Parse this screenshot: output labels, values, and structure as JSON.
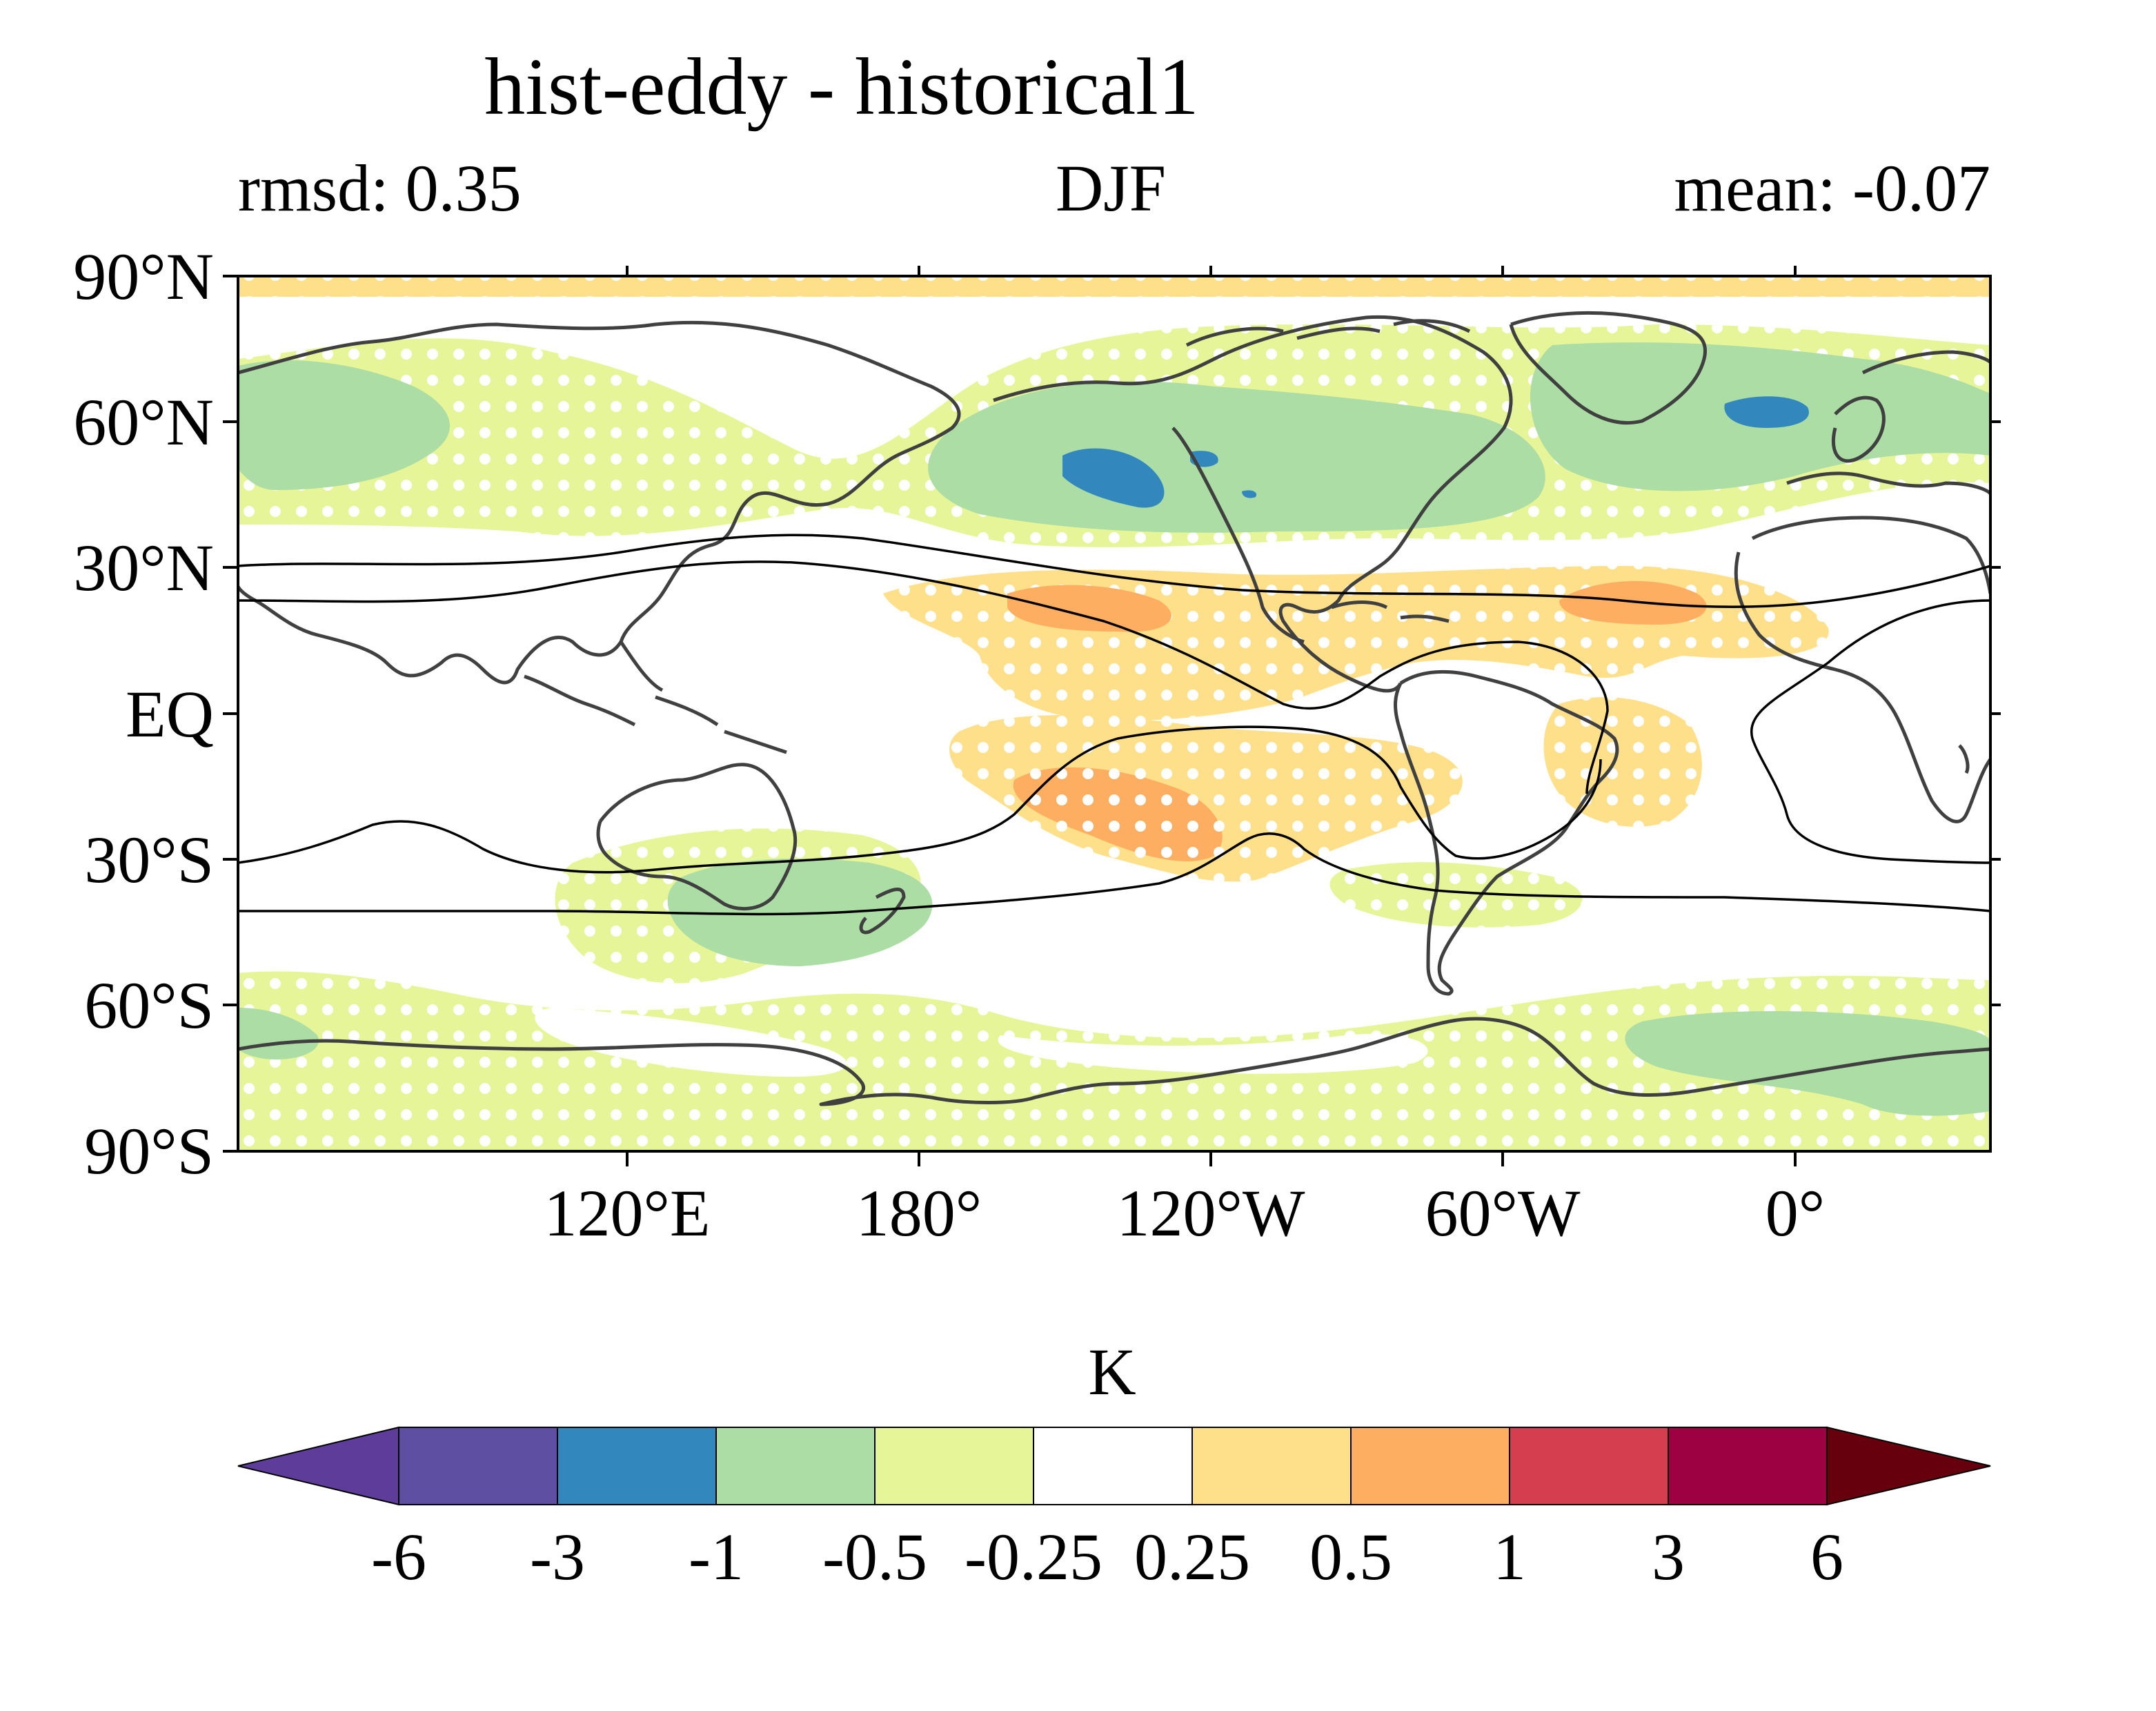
{
  "title": "hist-eddy - historical1",
  "subtitle": {
    "left": "rmsd: 0.35",
    "center": "DJF",
    "right": "mean: -0.07"
  },
  "map": {
    "lat_labels": [
      "90°N",
      "60°N",
      "30°N",
      "EQ",
      "30°S",
      "60°S",
      "90°S"
    ],
    "lon_labels": [
      "120°E",
      "180°",
      "120°W",
      "60°W",
      "0°"
    ],
    "lon_range": [
      40,
      400
    ],
    "lat_range": [
      -90,
      90
    ]
  },
  "colorbar": {
    "unit_label": "K",
    "levels": [
      "-6",
      "-3",
      "-1",
      "-0.5",
      "-0.25",
      "0.25",
      "0.5",
      "1",
      "3",
      "6"
    ],
    "colors": [
      "#5e3c99",
      "#5e4fa2",
      "#3288bd",
      "#abdda4",
      "#e6f598",
      "#ffffff",
      "#fee08b",
      "#fdae61",
      "#d53e4f",
      "#9e0142",
      "#67000d"
    ]
  },
  "colors": {
    "stipple": "#ffffff",
    "coast": "#404040",
    "contour": "#000000"
  }
}
